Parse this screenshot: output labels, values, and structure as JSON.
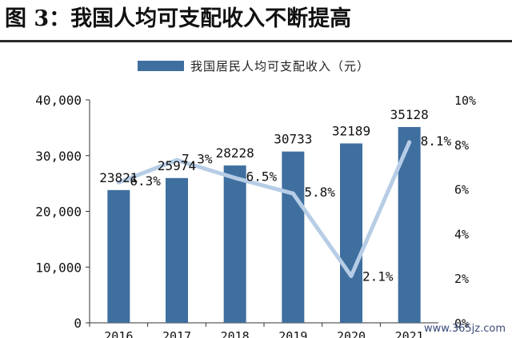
{
  "figure": {
    "title": "图 3：我国人均可支配收入不断提高",
    "watermark": "www.365jz.com"
  },
  "colors": {
    "bar": "#3f6f9f",
    "line": "#b7cde6",
    "rule": "#2a2a2a"
  },
  "chart_data": {
    "type": "bar",
    "categories": [
      "2016",
      "2017",
      "2018",
      "2019",
      "2020",
      "2021"
    ],
    "series": [
      {
        "name": "我国居民人均可支配收入（元）",
        "type": "bar",
        "axis": "left",
        "values": [
          23821,
          25974,
          28228,
          30733,
          32189,
          35128
        ],
        "data_labels": [
          "23821",
          "25974",
          "28228",
          "30733",
          "32189",
          "35128"
        ]
      },
      {
        "type": "line",
        "axis": "right",
        "values": [
          6.3,
          7.3,
          6.5,
          5.8,
          2.1,
          8.1
        ],
        "data_labels": [
          "6.3%",
          "7.3%",
          "6.5%",
          "5.8%",
          "2.1%",
          "8.1%"
        ]
      }
    ],
    "y_left": {
      "min": 0,
      "max": 40000,
      "ticks": [
        0,
        10000,
        20000,
        30000,
        40000
      ],
      "tick_labels": [
        "0",
        "10,000",
        "20,000",
        "30,000",
        "40,000"
      ]
    },
    "y_right": {
      "min": 0,
      "max": 10,
      "ticks": [
        0,
        2,
        4,
        6,
        8,
        10
      ],
      "tick_labels": [
        "0%",
        "2%",
        "4%",
        "6%",
        "8%",
        "10%"
      ]
    },
    "grid": false,
    "legend_position": "top-center"
  }
}
